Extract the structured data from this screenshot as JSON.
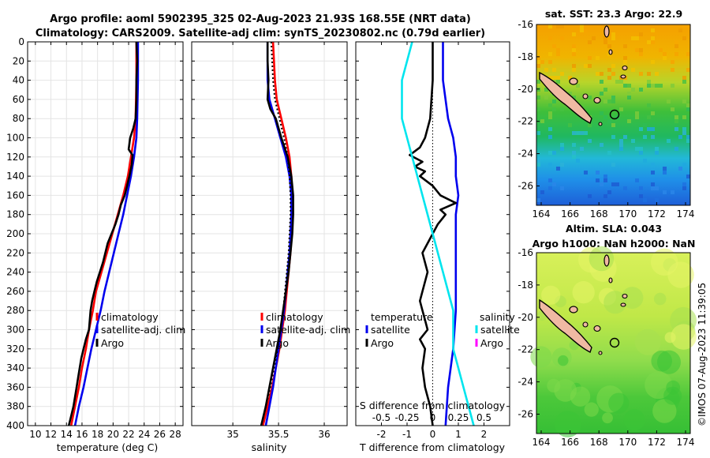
{
  "title_line1": "Argo profile: aoml 5902395_325 02-Aug-2023 21.93S 168.55E (NRT data)",
  "title_line2": "Climatology: CARS2009. Satellite-adj clim: synTS_20230802.nc (0.79d earlier)",
  "side_stamp": "©IMOS 07-Aug-2023 11:39:05",
  "depth_ticks": [
    "0",
    "20",
    "40",
    "60",
    "80",
    "100",
    "120",
    "140",
    "160",
    "180",
    "200",
    "220",
    "240",
    "260",
    "280",
    "300",
    "320",
    "340",
    "360",
    "380",
    "400"
  ],
  "chart_data": [
    {
      "type": "line",
      "name": "temperature",
      "xlabel": "temperature (deg C)",
      "ylabel": "depth",
      "xlim": [
        9,
        29
      ],
      "ylim": [
        400,
        0
      ],
      "xticks": [
        "10",
        "12",
        "14",
        "16",
        "18",
        "20",
        "22",
        "24",
        "26",
        "28"
      ],
      "grid": true,
      "legend": [
        "climatology",
        "satellite-adj. clim",
        "Argo"
      ],
      "series": [
        {
          "name": "climatology",
          "color": "#ff0000",
          "depth": [
            0,
            40,
            80,
            100,
            120,
            140,
            160,
            180,
            200,
            220,
            240,
            260,
            280,
            300,
            320,
            340,
            360,
            380,
            400
          ],
          "values": [
            23.0,
            23.0,
            22.9,
            22.7,
            22.3,
            21.9,
            21.3,
            20.6,
            19.9,
            19.2,
            18.5,
            17.8,
            17.4,
            16.9,
            16.5,
            16.0,
            15.6,
            15.1,
            14.6
          ]
        },
        {
          "name": "satellite-adj. clim",
          "color": "#0000ee",
          "depth": [
            0,
            40,
            80,
            100,
            120,
            140,
            160,
            180,
            200,
            220,
            240,
            260,
            280,
            300,
            320,
            340,
            360,
            380,
            400
          ],
          "values": [
            23.2,
            23.2,
            23.1,
            23.0,
            22.7,
            22.3,
            21.8,
            21.3,
            20.7,
            20.1,
            19.5,
            18.9,
            18.4,
            17.8,
            17.2,
            16.7,
            16.2,
            15.6,
            15.1
          ]
        },
        {
          "name": "Argo",
          "color": "#000000",
          "depth": [
            0,
            20,
            40,
            60,
            80,
            90,
            100,
            112,
            118,
            128,
            140,
            150,
            160,
            170,
            180,
            190,
            200,
            210,
            220,
            230,
            240,
            250,
            260,
            270,
            280,
            290,
            300,
            310,
            320,
            330,
            340,
            350,
            360,
            370,
            380,
            390,
            400
          ],
          "values": [
            23.0,
            23.1,
            23.0,
            23.0,
            22.9,
            22.6,
            22.2,
            22.0,
            22.5,
            22.4,
            22.1,
            21.8,
            21.5,
            21.0,
            20.7,
            20.3,
            19.8,
            19.3,
            19.0,
            18.7,
            18.3,
            17.9,
            17.6,
            17.3,
            17.1,
            17.0,
            16.9,
            16.5,
            16.2,
            15.9,
            15.7,
            15.5,
            15.3,
            15.1,
            14.9,
            14.6,
            14.3
          ]
        }
      ]
    },
    {
      "type": "line",
      "name": "salinity",
      "xlabel": "salinity",
      "ylabel": "depth",
      "xlim": [
        34.55,
        36.25
      ],
      "ylim": [
        400,
        0
      ],
      "xticks": [
        "35",
        "35.5",
        "36"
      ],
      "grid": true,
      "legend": [
        "climatology",
        "satellite-adj. clim",
        "Argo"
      ],
      "series": [
        {
          "name": "climatology",
          "color": "#ff0000",
          "depth": [
            0,
            20,
            40,
            60,
            80,
            100,
            120,
            140,
            160,
            180,
            200,
            220,
            240,
            260,
            280,
            300,
            320,
            340,
            360,
            380,
            400
          ],
          "values": [
            35.44,
            35.45,
            35.46,
            35.48,
            35.53,
            35.58,
            35.62,
            35.64,
            35.65,
            35.65,
            35.64,
            35.63,
            35.61,
            35.59,
            35.57,
            35.54,
            35.51,
            35.47,
            35.43,
            35.38,
            35.33
          ]
        },
        {
          "name": "satellite-adj. clim",
          "color": "#0000ee",
          "depth": [
            0,
            20,
            40,
            60,
            80,
            100,
            120,
            140,
            160,
            180,
            200,
            220,
            240,
            260,
            280,
            300,
            320,
            340,
            360,
            380,
            400
          ],
          "values": [
            35.38,
            35.38,
            35.38,
            35.4,
            35.46,
            35.52,
            35.58,
            35.62,
            35.64,
            35.64,
            35.63,
            35.62,
            35.6,
            35.58,
            35.56,
            35.53,
            35.5,
            35.47,
            35.44,
            35.4,
            35.36
          ]
        },
        {
          "name": "Argo",
          "color": "#000000",
          "depth": [
            0,
            20,
            40,
            60,
            70,
            80,
            100,
            120,
            140,
            160,
            180,
            200,
            220,
            240,
            260,
            280,
            300,
            320,
            340,
            360,
            380,
            400
          ],
          "values": [
            35.38,
            35.38,
            35.39,
            35.38,
            35.41,
            35.47,
            35.53,
            35.6,
            35.64,
            35.66,
            35.66,
            35.65,
            35.63,
            35.61,
            35.58,
            35.55,
            35.52,
            35.48,
            35.44,
            35.4,
            35.36,
            35.31
          ]
        }
      ]
    },
    {
      "type": "line",
      "name": "difference from climatology",
      "xlabel": "T difference from climatology",
      "xlabel2": "S difference from climatology",
      "xlim": [
        -3,
        3
      ],
      "ylim": [
        400,
        0
      ],
      "xticks": [
        "-2",
        "-1",
        "0",
        "1",
        "2"
      ],
      "xticks_s": [
        "-0.5",
        "-0.25",
        "0",
        "0.25",
        "0.5"
      ],
      "legend_left_title": "temperature",
      "legend_right_title": "salinity",
      "legend_left": [
        "satellite",
        "Argo"
      ],
      "legend_right": [
        "satellite",
        "Argo"
      ],
      "series": [
        {
          "name": "temperature satellite",
          "color": "#0000ee",
          "depth": [
            0,
            40,
            80,
            100,
            120,
            140,
            160,
            180,
            200,
            240,
            280,
            320,
            360,
            400
          ],
          "values": [
            0.4,
            0.4,
            0.6,
            0.8,
            0.9,
            0.9,
            1.0,
            0.9,
            0.9,
            0.9,
            0.9,
            0.8,
            0.6,
            0.5
          ]
        },
        {
          "name": "temperature Argo",
          "color": "#000000",
          "depth": [
            0,
            40,
            80,
            100,
            110,
            118,
            125,
            130,
            135,
            140,
            150,
            160,
            168,
            175,
            180,
            190,
            200,
            220,
            240,
            260,
            270,
            280,
            290,
            300,
            310,
            320,
            340,
            360,
            380,
            400
          ],
          "values": [
            0.0,
            0.0,
            -0.1,
            -0.3,
            -0.5,
            -0.9,
            -0.4,
            -0.7,
            -0.3,
            -0.5,
            0.0,
            0.3,
            0.9,
            0.3,
            0.5,
            0.2,
            0.0,
            -0.4,
            -0.2,
            -0.4,
            -0.5,
            -0.4,
            -0.3,
            -0.2,
            -0.5,
            -0.3,
            -0.4,
            -0.3,
            -0.1,
            0.0
          ]
        },
        {
          "name": "salinity satellite",
          "color": "#00e5ee",
          "depth": [
            0,
            40,
            80,
            120,
            160,
            200,
            240,
            280,
            320,
            360,
            400
          ],
          "values": [
            -0.2,
            -0.3,
            -0.3,
            -0.2,
            -0.1,
            0.0,
            0.1,
            0.2,
            0.2,
            0.3,
            0.4
          ]
        },
        {
          "name": "salinity Argo",
          "color": "#ff00ff",
          "depth": [],
          "values": []
        }
      ]
    }
  ],
  "maps": [
    {
      "name": "sst",
      "title": "sat. SST: 23.3  Argo: 22.9",
      "lat_ticks": [
        "-16",
        "-18",
        "-20",
        "-22",
        "-24",
        "-26"
      ],
      "lon_ticks": [
        "164",
        "166",
        "168",
        "170",
        "172",
        "174"
      ],
      "profile_location": {
        "lon": 168.55,
        "lat": -21.93
      }
    },
    {
      "name": "sla",
      "title_line1": "Altim. SLA: 0.043",
      "title_line2": "Argo h1000: NaN h2000: NaN",
      "lat_ticks": [
        "-16",
        "-18",
        "-20",
        "-22",
        "-24",
        "-26"
      ],
      "lon_ticks": [
        "164",
        "166",
        "168",
        "170",
        "172",
        "174"
      ],
      "profile_location": {
        "lon": 168.55,
        "lat": -21.93
      }
    }
  ]
}
